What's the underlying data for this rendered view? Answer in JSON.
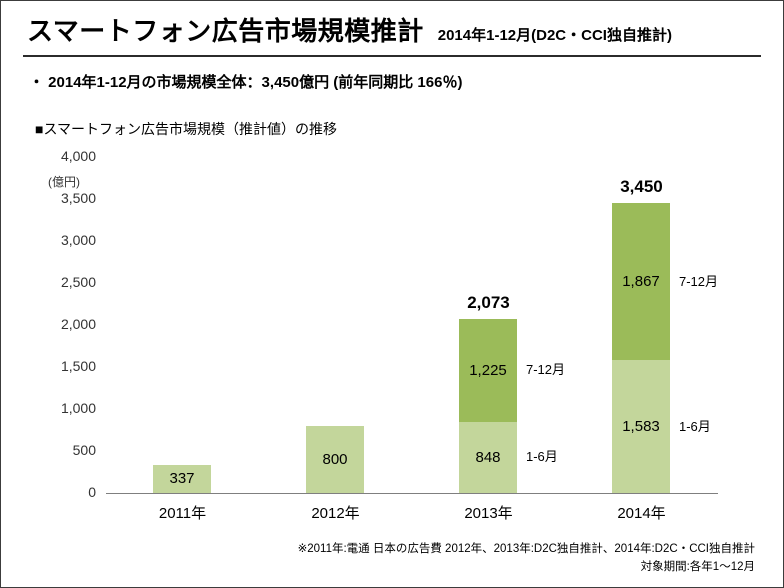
{
  "header": {
    "title": "スマートフォン広告市場規模推計",
    "subtitle": "2014年1-12月(D2C・CCI独自推計)"
  },
  "summary": {
    "bullet": "・ 2014年1-12月の市場規模全体：3,450億円 (前年同期比 166％)"
  },
  "section": {
    "label": "■スマートフォン広告市場規模（推計値）の推移"
  },
  "chart_data": {
    "type": "bar",
    "stacked": true,
    "title": "スマートフォン広告市場規模（推計値）の推移",
    "xlabel": "",
    "ylabel": "(億円)",
    "unit_label": "(億円)",
    "ylim": [
      0,
      4000
    ],
    "ytick_interval": 500,
    "yticks": [
      "4,000",
      "3,500",
      "3,000",
      "2,500",
      "2,000",
      "1,500",
      "1,000",
      "500",
      "0"
    ],
    "grid": false,
    "legend": "none",
    "colors": {
      "first_half": "#c3d69b",
      "second_half": "#9bbb59"
    },
    "categories": [
      "2011年",
      "2012年",
      "2013年",
      "2014年"
    ],
    "bars": [
      {
        "category": "2011年",
        "total": 337,
        "total_label": "",
        "segments": [
          {
            "value": 337,
            "label": "337",
            "color_key": "first_half",
            "side_label": ""
          }
        ]
      },
      {
        "category": "2012年",
        "total": 800,
        "total_label": "",
        "segments": [
          {
            "value": 800,
            "label": "800",
            "color_key": "first_half",
            "side_label": ""
          }
        ]
      },
      {
        "category": "2013年",
        "total": 2073,
        "total_label": "2,073",
        "segments": [
          {
            "value": 848,
            "label": "848",
            "color_key": "first_half",
            "side_label": "1-6月"
          },
          {
            "value": 1225,
            "label": "1,225",
            "color_key": "second_half",
            "side_label": "7-12月"
          }
        ]
      },
      {
        "category": "2014年",
        "total": 3450,
        "total_label": "3,450",
        "segments": [
          {
            "value": 1583,
            "label": "1,583",
            "color_key": "first_half",
            "side_label": "1-6月"
          },
          {
            "value": 1867,
            "label": "1,867",
            "color_key": "second_half",
            "side_label": "7-12月"
          }
        ]
      }
    ]
  },
  "footer": {
    "line1": "※2011年:電通 日本の広告費 2012年、2013年:D2C独自推計、2014年:D2C・CCI独自推計",
    "line2": "対象期間:各年1～12月"
  }
}
